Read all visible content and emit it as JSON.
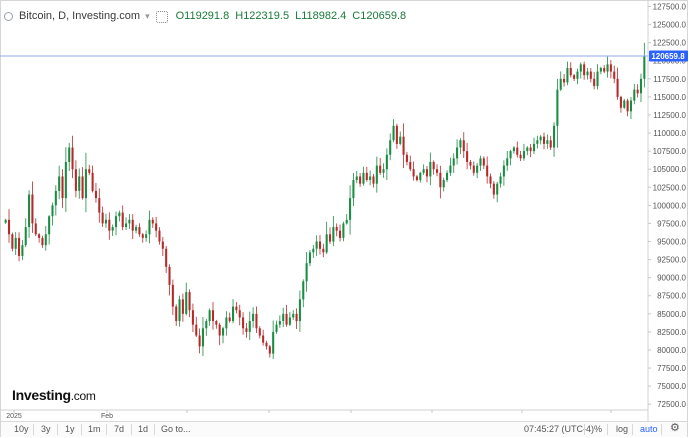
{
  "legend": {
    "title": "Bitcoin, D, Investing.com",
    "open": "119291.8",
    "high": "122319.5",
    "low": "118982.4",
    "close": "120659.8",
    "open_label": "O",
    "high_label": "H",
    "low_label": "L",
    "close_label": "C"
  },
  "logo": {
    "brand": "Investing",
    "suffix": ".com"
  },
  "toolbar": {
    "ranges": [
      "10y",
      "3y",
      "1y",
      "1m",
      "7d",
      "1d"
    ],
    "goto": "Go to...",
    "time": "07:45:27 (UTC-4)",
    "percent": "%",
    "log": "log",
    "auto": "auto"
  },
  "colors": {
    "up": "#1a8c43",
    "down": "#b52a2a",
    "price_line": "#8fa8ee",
    "price_tag": "#2962ff"
  },
  "chart_data": {
    "type": "candlestick",
    "title": "Bitcoin, D, Investing.com",
    "x_labels": [
      "2025",
      "Feb"
    ],
    "y_ticks": [
      72500,
      75000,
      77500,
      80000,
      82500,
      85000,
      87500,
      90000,
      92500,
      95000,
      97500,
      100000,
      102500,
      105000,
      107500,
      110000,
      112500,
      115000,
      117500,
      120000,
      122500,
      125000,
      127500
    ],
    "ylim": [
      71700,
      128400
    ],
    "last_price": 120659.8,
    "last_price_label": "120659.8",
    "grid": false,
    "closes": [
      98000,
      96000,
      94000,
      95500,
      93000,
      94500,
      97000,
      101500,
      97500,
      96000,
      95500,
      94500,
      96000,
      98500,
      100000,
      102000,
      104000,
      101000,
      106000,
      108000,
      105000,
      102000,
      104000,
      101000,
      105000,
      104500,
      102000,
      101000,
      99000,
      97500,
      98000,
      96500,
      97000,
      98500,
      99000,
      97000,
      97500,
      98000,
      96500,
      97000,
      96000,
      95500,
      96000,
      98000,
      97500,
      96500,
      95000,
      94000,
      91500,
      89000,
      86000,
      84000,
      87000,
      85000,
      88000,
      85500,
      83500,
      82000,
      80500,
      83000,
      84000,
      85500,
      84000,
      83500,
      82000,
      83000,
      84500,
      84000,
      86000,
      85500,
      84500,
      83000,
      82500,
      84000,
      85000,
      83000,
      82000,
      81000,
      80500,
      79500,
      82500,
      83500,
      84000,
      85000,
      83500,
      84500,
      85000,
      84000,
      87000,
      89500,
      92000,
      93500,
      94000,
      95000,
      94000,
      93500,
      96000,
      95000,
      97000,
      96500,
      95500,
      97500,
      98000,
      101000,
      103500,
      104000,
      103000,
      104500,
      103500,
      104000,
      103000,
      105500,
      104500,
      105000,
      107000,
      109000,
      111000,
      108500,
      109500,
      107000,
      106000,
      105000,
      104000,
      103500,
      104500,
      105000,
      104000,
      106000,
      105000,
      104500,
      102500,
      103500,
      104500,
      105500,
      106500,
      108000,
      109000,
      107500,
      106000,
      105500,
      104500,
      105500,
      106500,
      105500,
      104000,
      103000,
      101500,
      103000,
      104000,
      105500,
      106500,
      107500,
      108000,
      107000,
      106500,
      107500,
      108000,
      107500,
      108500,
      109000,
      109500,
      108500,
      109000,
      108000,
      111000,
      116000,
      117500,
      117000,
      119000,
      118000,
      117500,
      118500,
      119500,
      118000,
      118500,
      117500,
      116500,
      118500,
      119000,
      118500,
      119500,
      118500,
      117500,
      115000,
      113500,
      114500,
      113000,
      114500,
      116000,
      115500,
      117500,
      120659.8
    ]
  }
}
